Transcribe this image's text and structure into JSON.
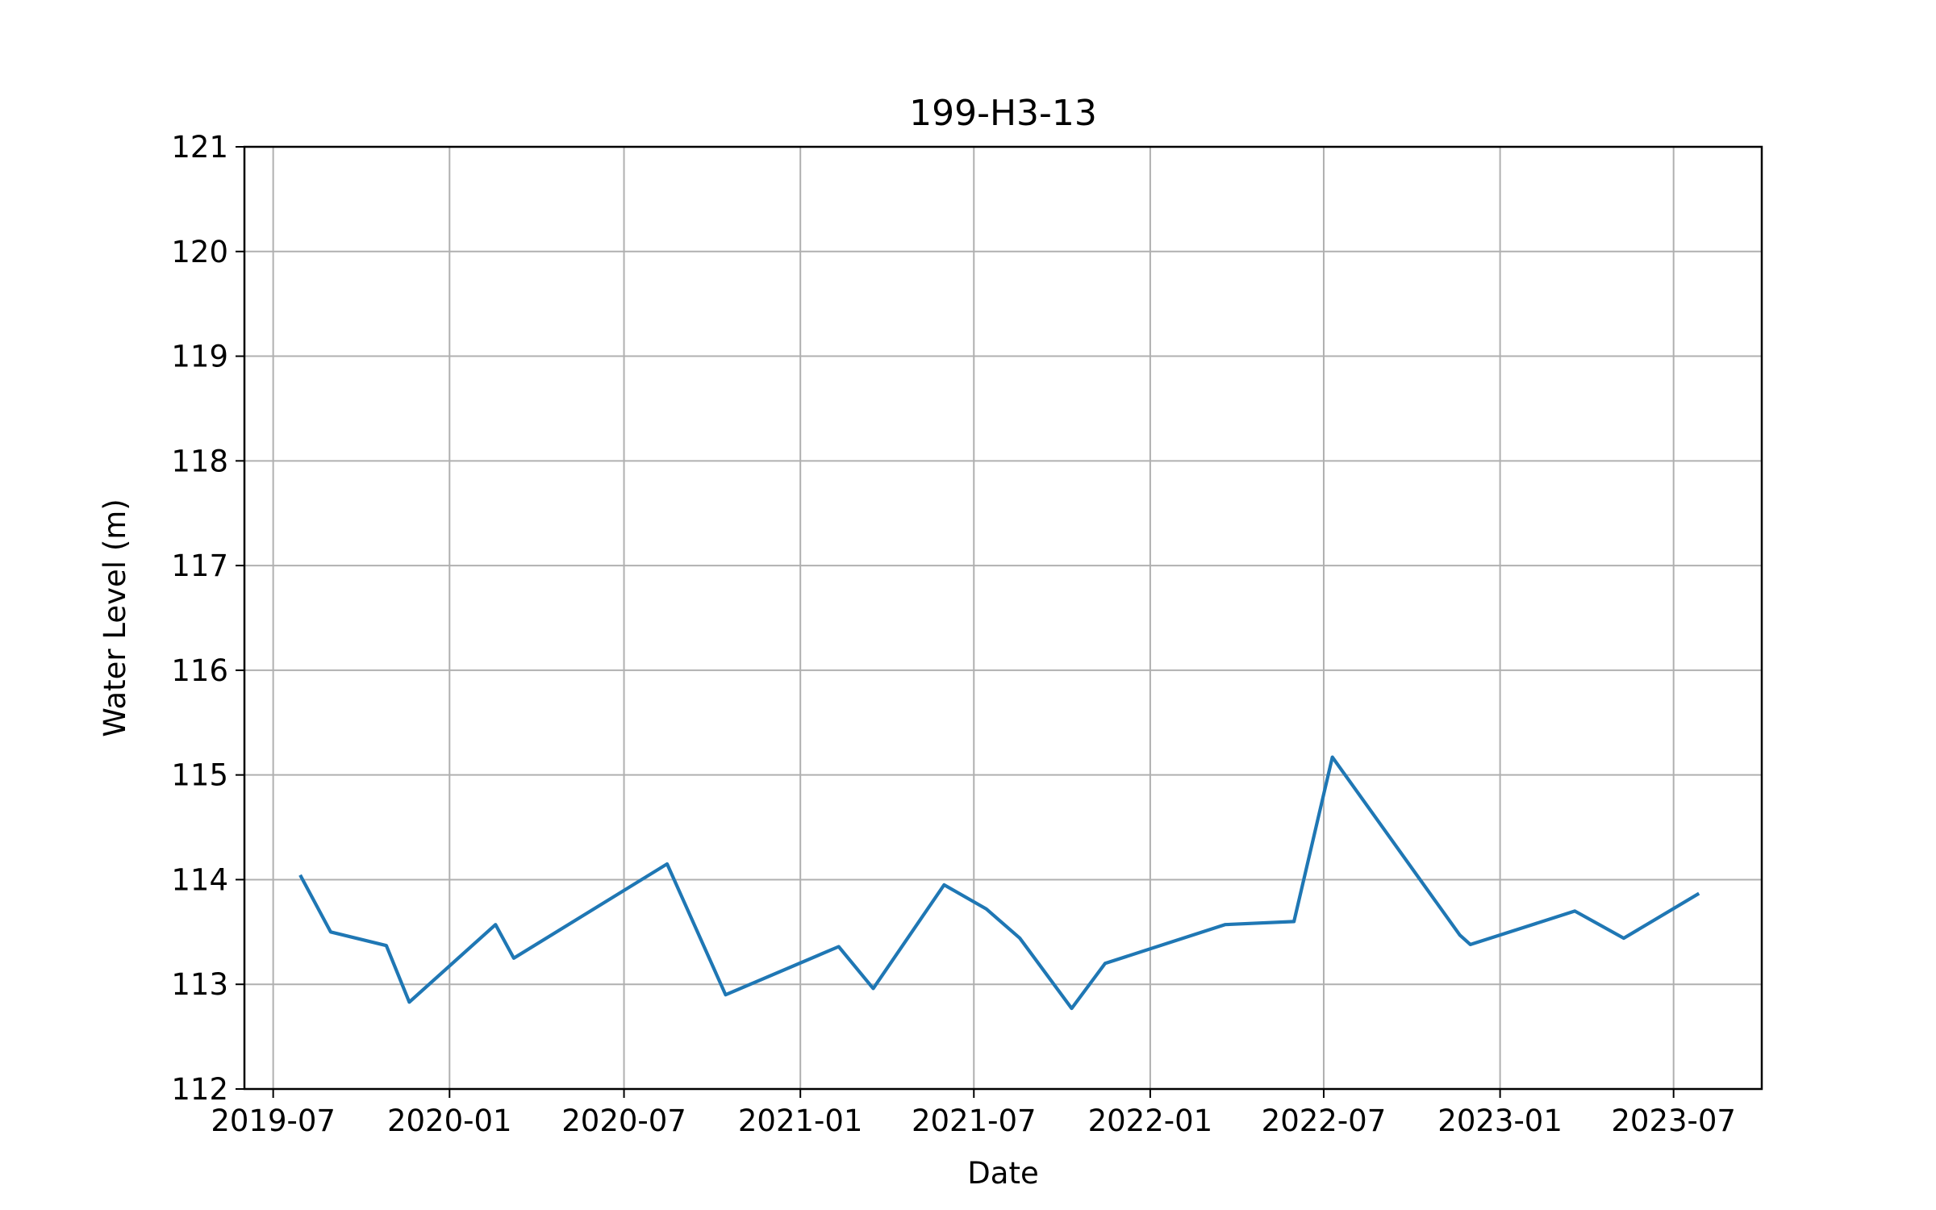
{
  "chart_data": {
    "type": "line",
    "title": "199-H3-13",
    "xlabel": "Date",
    "ylabel": "Water Level (m)",
    "xlim": [
      "2019-06-01",
      "2023-10-01"
    ],
    "ylim": [
      112,
      121
    ],
    "grid": true,
    "x_ticks": [
      "2019-07",
      "2020-01",
      "2020-07",
      "2021-01",
      "2021-07",
      "2022-01",
      "2022-07",
      "2023-01",
      "2023-07"
    ],
    "y_ticks": [
      112,
      113,
      114,
      115,
      116,
      117,
      118,
      119,
      120,
      121
    ],
    "colors": {
      "line": "#1f77b4",
      "grid": "#b0b0b0",
      "axes": "#000000"
    },
    "series": [
      {
        "x": [
          "2019-07-30",
          "2019-08-30",
          "2019-10-27",
          "2019-11-20",
          "2020-02-18",
          "2020-03-08",
          "2020-08-15",
          "2020-10-15",
          "2021-02-10",
          "2021-03-18",
          "2021-05-31",
          "2021-07-14",
          "2021-08-18",
          "2021-10-11",
          "2021-11-15",
          "2022-03-20",
          "2022-05-31",
          "2022-07-10",
          "2022-11-20",
          "2022-12-01",
          "2023-03-20",
          "2023-05-10",
          "2023-07-26"
        ],
        "y": [
          114.03,
          113.5,
          113.37,
          112.83,
          113.57,
          113.25,
          114.15,
          112.9,
          113.36,
          112.96,
          113.95,
          113.72,
          113.44,
          112.77,
          113.2,
          113.57,
          113.6,
          115.17,
          113.47,
          113.38,
          113.7,
          113.44,
          113.86
        ]
      }
    ]
  }
}
